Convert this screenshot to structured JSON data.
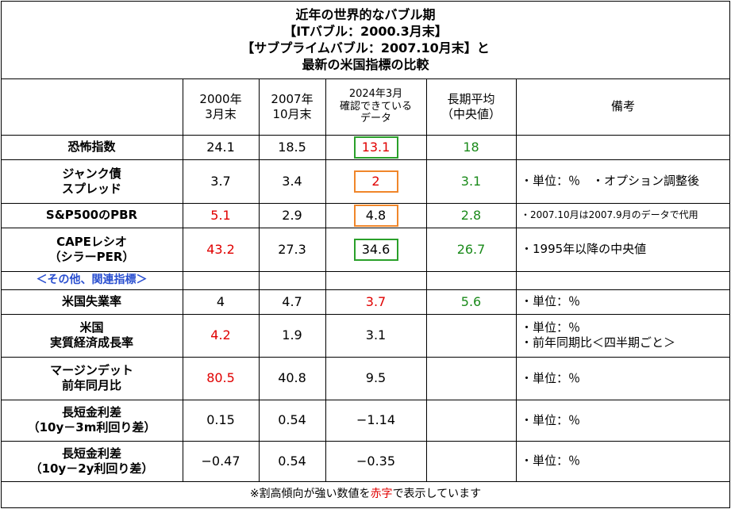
{
  "title": {
    "line1": "近年の世界的なバブル期",
    "line2": "【ITバブル：2000.3月末】",
    "line3": "【サブプライムバブル：2007.10月末】と",
    "line4": "最新の米国指標の比較"
  },
  "headers": {
    "col_2000": [
      "2000年",
      "3月末"
    ],
    "col_2007": [
      "2007年",
      "10月末"
    ],
    "col_2024": [
      "2024年3月",
      "確認できている",
      "データ"
    ],
    "col_avg": [
      "長期平均",
      "（中央値）"
    ],
    "col_note": "備考"
  },
  "rows": [
    {
      "label": [
        "恐怖指数"
      ],
      "v2000": "24.1",
      "v2007": "18.5",
      "v2024": "13.1",
      "avg": "18",
      "note": [],
      "v2000_color": "#000000",
      "v2024_color": "#e00000",
      "avg_color": "#1a8a1a",
      "v2024_frame": "green"
    },
    {
      "label": [
        "ジャンク債",
        "スプレッド"
      ],
      "v2000": "3.7",
      "v2007": "3.4",
      "v2024": "2",
      "avg": "3.1",
      "note": [
        "・単位：％　・オプション調整後"
      ],
      "v2000_color": "#000000",
      "v2024_color": "#e00000",
      "avg_color": "#1a8a1a",
      "v2024_frame": "orange"
    },
    {
      "label": [
        "S&P500のPBR"
      ],
      "v2000": "5.1",
      "v2007": "2.9",
      "v2024": "4.8",
      "avg": "2.8",
      "note": [
        "・2007.10月は2007.9月のデータで代用"
      ],
      "v2000_color": "#e00000",
      "v2024_color": "#000000",
      "avg_color": "#1a8a1a",
      "v2024_frame": "orange"
    },
    {
      "label": [
        "CAPEレシオ",
        "（シラーPER）"
      ],
      "v2000": "43.2",
      "v2007": "27.3",
      "v2024": "34.6",
      "avg": "26.7",
      "note": [
        "・1995年以降の中央値"
      ],
      "v2000_color": "#e00000",
      "v2024_color": "#000000",
      "avg_color": "#1a8a1a",
      "v2024_frame": "green"
    },
    {
      "section": "＜その他、関連指標＞"
    },
    {
      "label": [
        "米国失業率"
      ],
      "v2000": "4",
      "v2007": "4.7",
      "v2024": "3.7",
      "avg": "5.6",
      "note": [
        "・単位：％"
      ],
      "v2000_color": "#000000",
      "v2024_color": "#e00000",
      "avg_color": "#1a8a1a"
    },
    {
      "label": [
        "米国",
        "実質経済成長率"
      ],
      "v2000": "4.2",
      "v2007": "1.9",
      "v2024": "3.1",
      "avg": "",
      "note": [
        "・単位：％",
        "・前年同期比＜四半期ごと＞"
      ],
      "v2000_color": "#e00000",
      "v2024_color": "#000000",
      "avg_color": "#1a8a1a"
    },
    {
      "label": [
        "マージンデット",
        "前年同月比"
      ],
      "v2000": "80.5",
      "v2007": "40.8",
      "v2024": "9.5",
      "avg": "",
      "note": [
        "・単位：％"
      ],
      "v2000_color": "#e00000",
      "v2024_color": "#000000",
      "avg_color": "#1a8a1a"
    },
    {
      "label": [
        "長短金利差",
        "（10y－3m利回り差）"
      ],
      "v2000": "0.15",
      "v2007": "0.54",
      "v2024": "−1.14",
      "avg": "",
      "note": [
        "・単位：％"
      ],
      "v2000_color": "#000000",
      "v2024_color": "#000000",
      "avg_color": "#1a8a1a"
    },
    {
      "label": [
        "長短金利差",
        "（10y－2y利回り差）"
      ],
      "v2000": "−0.47",
      "v2007": "0.54",
      "v2024": "−0.35",
      "avg": "",
      "note": [
        "・単位：％"
      ],
      "v2000_color": "#000000",
      "v2024_color": "#000000",
      "avg_color": "#1a8a1a"
    }
  ],
  "footer": {
    "before": "※割高傾向が強い数値を",
    "red": "赤字",
    "after": "で表示しています",
    "red_color": "#e00000"
  },
  "frame_colors": {
    "green": "#2aa02a",
    "orange": "#f0862a"
  }
}
